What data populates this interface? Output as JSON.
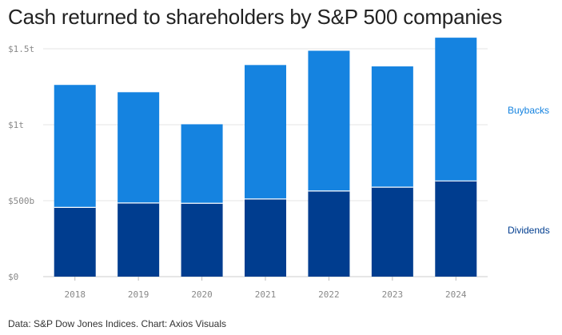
{
  "title": "Cash returned to shareholders by S&P 500 companies",
  "source": "Data: S&P Dow Jones Indices. Chart: Axios Visuals",
  "colors": {
    "buybacks": "#1583e0",
    "dividends": "#003d8f",
    "buybacks_label": "#1583e0",
    "dividends_label": "#003d8f",
    "grid": "#e6e6e6",
    "axis": "#888888"
  },
  "chart_data": {
    "type": "bar",
    "stacked": true,
    "categories": [
      "2018",
      "2019",
      "2020",
      "2021",
      "2022",
      "2023",
      "2024"
    ],
    "series": [
      {
        "name": "Dividends",
        "values": [
          456,
          485,
          483,
          511,
          564,
          589,
          630
        ]
      },
      {
        "name": "Buybacks",
        "values": [
          806,
          729,
          520,
          882,
          923,
          795,
          943
        ]
      }
    ],
    "yticks": [
      0,
      500,
      1000,
      1500
    ],
    "ytick_labels": [
      "$0",
      "$500b",
      "$1t",
      "$1.5t"
    ],
    "ylim": [
      0,
      1500
    ],
    "grid": true,
    "legend": "right, inline labels"
  }
}
